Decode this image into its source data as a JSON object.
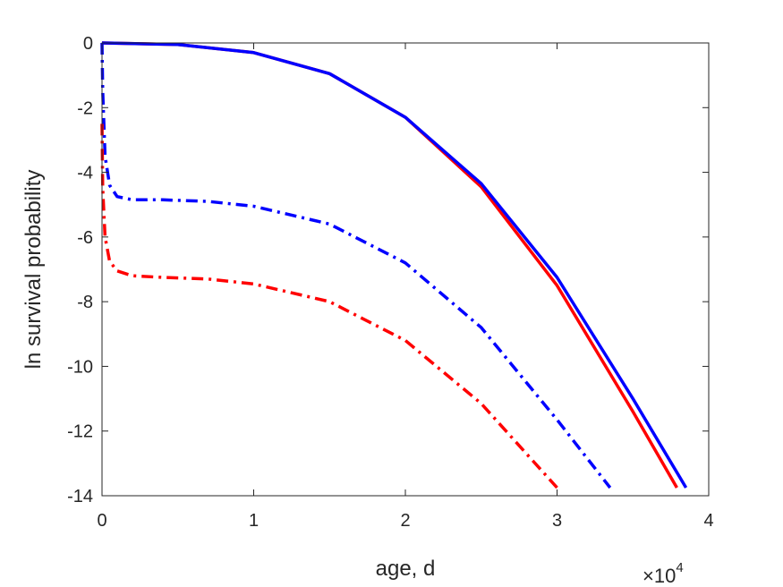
{
  "chart_data": {
    "type": "line",
    "title": "",
    "xlabel": "age, d",
    "ylabel": "ln survival probability",
    "x_exponent_label": {
      "base": "×10",
      "power": "4"
    },
    "xlim": [
      0,
      4
    ],
    "ylim": [
      -14,
      0
    ],
    "x_scale_note": "x values in units of 10^4 days",
    "xticks": [
      0,
      1,
      2,
      3,
      4
    ],
    "yticks": [
      0,
      -2,
      -4,
      -6,
      -8,
      -10,
      -12,
      -14
    ],
    "xtick_labels": [
      "0",
      "1",
      "2",
      "3",
      "4"
    ],
    "ytick_labels": [
      "0",
      "-2",
      "-4",
      "-6",
      "-8",
      "-10",
      "-12",
      "-14"
    ],
    "grid": false,
    "legend": null,
    "series": [
      {
        "style": "solid",
        "color": "#ff0000",
        "x": [
          0.0,
          0.5,
          1.0,
          1.5,
          2.0,
          2.5,
          3.0,
          3.5,
          3.79
        ],
        "y": [
          0.0,
          -0.05,
          -0.3,
          -0.95,
          -2.3,
          -4.45,
          -7.5,
          -11.4,
          -13.75
        ]
      },
      {
        "style": "solid",
        "color": "#0000ff",
        "x": [
          0.0,
          0.5,
          1.0,
          1.5,
          2.0,
          2.5,
          3.0,
          3.5,
          3.85
        ],
        "y": [
          0.0,
          -0.05,
          -0.3,
          -0.95,
          -2.3,
          -4.35,
          -7.25,
          -11.0,
          -13.75
        ]
      },
      {
        "style": "dashdot",
        "color": "#0000ff",
        "x": [
          0.0,
          0.005,
          0.02,
          0.05,
          0.1,
          0.2,
          0.4,
          0.7,
          1.0,
          1.5,
          2.0,
          2.5,
          3.0,
          3.35
        ],
        "y": [
          0.0,
          -1.5,
          -3.5,
          -4.4,
          -4.75,
          -4.85,
          -4.85,
          -4.9,
          -5.05,
          -5.6,
          -6.8,
          -8.8,
          -11.65,
          -13.75
        ]
      },
      {
        "style": "dashdot",
        "color": "#ff0000",
        "x": [
          0.0,
          0.005,
          0.02,
          0.05,
          0.1,
          0.2,
          0.4,
          0.7,
          1.0,
          1.5,
          2.0,
          2.5,
          3.0
        ],
        "y": [
          -2.5,
          -4.5,
          -6.0,
          -6.75,
          -7.05,
          -7.2,
          -7.25,
          -7.3,
          -7.45,
          -8.0,
          -9.2,
          -11.15,
          -13.75
        ]
      }
    ]
  }
}
